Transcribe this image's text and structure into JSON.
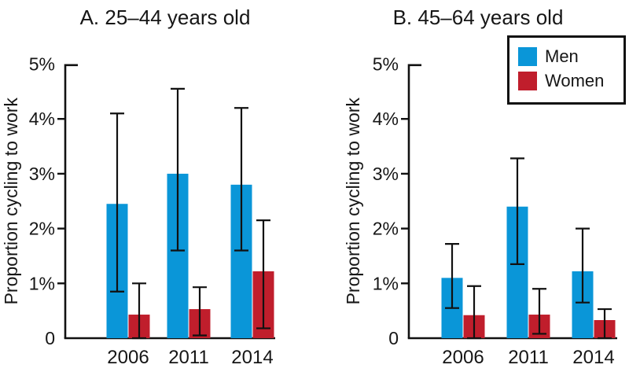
{
  "figure": {
    "background": "#ffffff",
    "ink_color": "#161616",
    "axis_color": "#111111"
  },
  "legend": {
    "position": "top-right",
    "items": [
      {
        "label": "Men",
        "color": "#0A96D8"
      },
      {
        "label": "Women",
        "color": "#C01E2C"
      }
    ]
  },
  "chart_data": [
    {
      "type": "bar",
      "title": "A. 25–44 years old",
      "ylabel": "Proportion cycling to work",
      "xlabel": "",
      "categories": [
        "2006",
        "2011",
        "2014"
      ],
      "ylim": [
        0,
        5
      ],
      "yticks": [
        0,
        1,
        2,
        3,
        4,
        5
      ],
      "ytick_labels": [
        "0",
        "1%",
        "2%",
        "3%",
        "4%",
        "5%"
      ],
      "grid": false,
      "error_bars": true,
      "legend_position": "top-right",
      "series": [
        {
          "name": "Men",
          "color": "#0A96D8",
          "values": [
            2.45,
            3.0,
            2.8
          ],
          "ci_low": [
            0.85,
            1.6,
            1.6
          ],
          "ci_high": [
            4.1,
            4.55,
            4.2
          ]
        },
        {
          "name": "Women",
          "color": "#C01E2C",
          "values": [
            0.43,
            0.53,
            1.22
          ],
          "ci_low": [
            0.0,
            0.05,
            0.18
          ],
          "ci_high": [
            1.0,
            0.93,
            2.15
          ]
        }
      ]
    },
    {
      "type": "bar",
      "title": "B. 45–64 years old",
      "ylabel": "Proportion cycling to work",
      "xlabel": "",
      "categories": [
        "2006",
        "2011",
        "2014"
      ],
      "ylim": [
        0,
        5
      ],
      "yticks": [
        0,
        1,
        2,
        3,
        4,
        5
      ],
      "ytick_labels": [
        "0",
        "1%",
        "2%",
        "3%",
        "4%",
        "5%"
      ],
      "grid": false,
      "error_bars": true,
      "series": [
        {
          "name": "Men",
          "color": "#0A96D8",
          "values": [
            1.1,
            2.4,
            1.22
          ],
          "ci_low": [
            0.55,
            1.35,
            0.65
          ],
          "ci_high": [
            1.72,
            3.28,
            2.0
          ]
        },
        {
          "name": "Women",
          "color": "#C01E2C",
          "values": [
            0.42,
            0.43,
            0.33
          ],
          "ci_low": [
            0.0,
            0.08,
            0.0
          ],
          "ci_high": [
            0.95,
            0.9,
            0.53
          ]
        }
      ]
    }
  ]
}
